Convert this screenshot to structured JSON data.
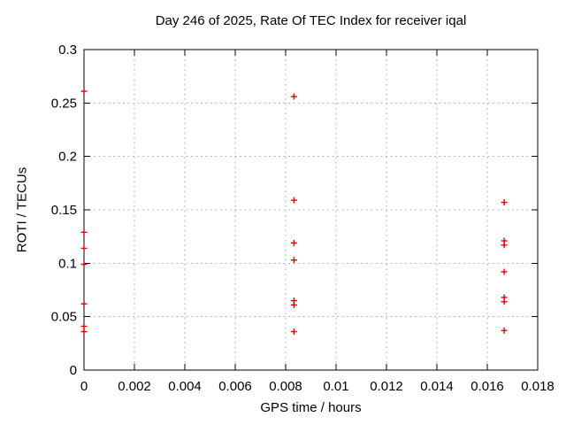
{
  "chart_data": {
    "type": "scatter",
    "title": "Day 246 of 2025, Rate Of TEC Index for receiver iqal",
    "xlabel": "GPS time / hours",
    "ylabel": "ROTI / TECUs",
    "xlim": [
      0,
      0.018
    ],
    "ylim": [
      0,
      0.3
    ],
    "grid": true,
    "legend": "none",
    "xticks": {
      "values": [
        0,
        0.002,
        0.004,
        0.006,
        0.008,
        0.01,
        0.012,
        0.014,
        0.016,
        0.018
      ],
      "labels": [
        "0",
        "0.002",
        "0.004",
        "0.006",
        "0.008",
        "0.01",
        "0.012",
        "0.014",
        "0.016",
        "0.018"
      ]
    },
    "yticks": {
      "values": [
        0,
        0.05,
        0.1,
        0.15,
        0.2,
        0.25,
        0.3
      ],
      "labels": [
        "0",
        "0.05",
        "0.1",
        "0.15",
        "0.2",
        "0.25",
        "0.3"
      ]
    },
    "marker": {
      "shape": "plus",
      "color": "#e60000",
      "size": 7
    },
    "colors": {
      "grid": "#b5b5b5",
      "axis": "#000000",
      "background": "#ffffff",
      "text": "#000000"
    },
    "series": [
      {
        "name": "ROTI",
        "points": [
          [
            0,
            0.261
          ],
          [
            0,
            0.129
          ],
          [
            0,
            0.114
          ],
          [
            0,
            0.099
          ],
          [
            0,
            0.062
          ],
          [
            0,
            0.041
          ],
          [
            0,
            0.036
          ],
          [
            0.00833,
            0.256
          ],
          [
            0.00833,
            0.159
          ],
          [
            0.00833,
            0.119
          ],
          [
            0.00833,
            0.103
          ],
          [
            0.00833,
            0.065
          ],
          [
            0.00833,
            0.061
          ],
          [
            0.00833,
            0.036
          ],
          [
            0.01667,
            0.157
          ],
          [
            0.01667,
            0.121
          ],
          [
            0.01667,
            0.117
          ],
          [
            0.01667,
            0.092
          ],
          [
            0.01667,
            0.068
          ],
          [
            0.01667,
            0.064
          ],
          [
            0.01667,
            0.037
          ]
        ]
      }
    ]
  }
}
